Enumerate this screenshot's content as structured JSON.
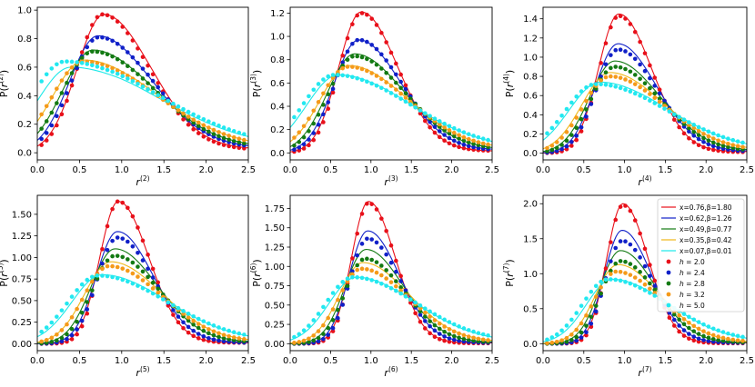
{
  "chart_data": {
    "type": "line+scatter",
    "layout": "2x3 grid of panels",
    "legend": {
      "placement": "inside bottom-right panel, top-right",
      "lines": [
        {
          "label": "x=0.76,β=1.80",
          "color": "#e8101a"
        },
        {
          "label": "x=0.62,β=1.26",
          "color": "#1020c8"
        },
        {
          "label": "x=0.49,β=0.77",
          "color": "#137a13"
        },
        {
          "label": "x=0.35,β=0.42",
          "color": "#f0b818"
        },
        {
          "label": "x=0.07,β=0.01",
          "color": "#1ce8e8"
        }
      ],
      "markers": [
        {
          "label": "h = 2.0",
          "color": "#e8101a"
        },
        {
          "label": "h = 2.4",
          "color": "#1020c8"
        },
        {
          "label": "h = 2.8",
          "color": "#137a13"
        },
        {
          "label": "h = 3.2",
          "color": "#f59a1a"
        },
        {
          "label": "h = 5.0",
          "color": "#22e8f0"
        }
      ]
    },
    "panels": [
      {
        "n": "2",
        "xlabel": "r",
        "ylabel": "P(r",
        "xlim": [
          0,
          2.5
        ],
        "ylim": [
          -0.05,
          1.02
        ],
        "xticks": [
          0.0,
          0.5,
          1.0,
          1.5,
          2.0,
          2.5
        ],
        "xtick_labels": [
          "0.0",
          "0.5",
          "1.0",
          "1.5",
          "2.0",
          "2.5"
        ],
        "yticks": [
          0.0,
          0.2,
          0.4,
          0.6,
          0.8,
          1.0
        ],
        "ytick_labels": [
          "0.0",
          "0.2",
          "0.4",
          "0.6",
          "0.8",
          "1.0"
        ],
        "curves": [
          {
            "peak": 0.79,
            "height": 0.97,
            "w_left": 0.32,
            "w_right": 0.55,
            "tail": 0.05
          },
          {
            "peak": 0.72,
            "height": 0.82,
            "w_left": 0.34,
            "w_right": 0.62,
            "tail": 0.07
          },
          {
            "peak": 0.66,
            "height": 0.72,
            "w_left": 0.36,
            "w_right": 0.7,
            "tail": 0.08
          },
          {
            "peak": 0.56,
            "height": 0.65,
            "w_left": 0.38,
            "w_right": 0.82,
            "tail": 0.09
          },
          {
            "peak": 0.4,
            "height": 0.6,
            "w_left": 0.4,
            "w_right": 1.0,
            "tail": 0.1
          }
        ],
        "points": [
          {
            "peak": 0.77,
            "height": 0.97,
            "w_left": 0.3,
            "w_right": 0.55,
            "tail": 0.04
          },
          {
            "peak": 0.73,
            "height": 0.81,
            "w_left": 0.33,
            "w_right": 0.63,
            "tail": 0.06
          },
          {
            "peak": 0.66,
            "height": 0.71,
            "w_left": 0.36,
            "w_right": 0.71,
            "tail": 0.07
          },
          {
            "peak": 0.55,
            "height": 0.64,
            "w_left": 0.38,
            "w_right": 0.84,
            "tail": 0.08
          },
          {
            "peak": 0.33,
            "height": 0.64,
            "w_left": 0.4,
            "w_right": 1.05,
            "tail": 0.1
          }
        ]
      },
      {
        "n": "3",
        "xlabel": "r",
        "ylabel": "P(r",
        "xlim": [
          0,
          2.5
        ],
        "ylim": [
          -0.06,
          1.25
        ],
        "xticks": [
          0.0,
          0.5,
          1.0,
          1.5,
          2.0,
          2.5
        ],
        "xtick_labels": [
          "0.0",
          "0.5",
          "1.0",
          "1.5",
          "2.0",
          "2.5"
        ],
        "yticks": [
          0.0,
          0.2,
          0.4,
          0.6,
          0.8,
          1.0,
          1.2
        ],
        "ytick_labels": [
          "0.0",
          "0.2",
          "0.4",
          "0.6",
          "0.8",
          "1.0",
          "1.2"
        ],
        "curves": [
          {
            "peak": 0.88,
            "height": 1.21,
            "w_left": 0.28,
            "w_right": 0.45,
            "tail": 0.03
          },
          {
            "peak": 0.85,
            "height": 0.97,
            "w_left": 0.31,
            "w_right": 0.52,
            "tail": 0.05
          },
          {
            "peak": 0.8,
            "height": 0.85,
            "w_left": 0.34,
            "w_right": 0.6,
            "tail": 0.06
          },
          {
            "peak": 0.73,
            "height": 0.75,
            "w_left": 0.36,
            "w_right": 0.7,
            "tail": 0.07
          },
          {
            "peak": 0.6,
            "height": 0.67,
            "w_left": 0.4,
            "w_right": 0.85,
            "tail": 0.09
          }
        ],
        "points": [
          {
            "peak": 0.88,
            "height": 1.2,
            "w_left": 0.27,
            "w_right": 0.45,
            "tail": 0.03
          },
          {
            "peak": 0.85,
            "height": 0.97,
            "w_left": 0.3,
            "w_right": 0.53,
            "tail": 0.04
          },
          {
            "peak": 0.8,
            "height": 0.83,
            "w_left": 0.33,
            "w_right": 0.62,
            "tail": 0.05
          },
          {
            "peak": 0.72,
            "height": 0.74,
            "w_left": 0.36,
            "w_right": 0.72,
            "tail": 0.06
          },
          {
            "peak": 0.55,
            "height": 0.67,
            "w_left": 0.4,
            "w_right": 0.9,
            "tail": 0.08
          }
        ]
      },
      {
        "n": "4",
        "xlabel": "r",
        "ylabel": "P(r",
        "xlim": [
          0,
          2.5
        ],
        "ylim": [
          -0.07,
          1.52
        ],
        "xticks": [
          0.0,
          0.5,
          1.0,
          1.5,
          2.0,
          2.5
        ],
        "xtick_labels": [
          "0.0",
          "0.5",
          "1.0",
          "1.5",
          "2.0",
          "2.5"
        ],
        "yticks": [
          0.0,
          0.2,
          0.4,
          0.6,
          0.8,
          1.0,
          1.2,
          1.4
        ],
        "ytick_labels": [
          "0.0",
          "0.2",
          "0.4",
          "0.6",
          "0.8",
          "1.0",
          "1.2",
          "1.4"
        ],
        "curves": [
          {
            "peak": 0.93,
            "height": 1.45,
            "w_left": 0.25,
            "w_right": 0.4,
            "tail": 0.03
          },
          {
            "peak": 0.92,
            "height": 1.14,
            "w_left": 0.28,
            "w_right": 0.47,
            "tail": 0.04
          },
          {
            "peak": 0.88,
            "height": 0.96,
            "w_left": 0.31,
            "w_right": 0.55,
            "tail": 0.05
          },
          {
            "peak": 0.82,
            "height": 0.84,
            "w_left": 0.34,
            "w_right": 0.65,
            "tail": 0.06
          },
          {
            "peak": 0.7,
            "height": 0.74,
            "w_left": 0.38,
            "w_right": 0.8,
            "tail": 0.08
          }
        ],
        "points": [
          {
            "peak": 0.93,
            "height": 1.43,
            "w_left": 0.24,
            "w_right": 0.4,
            "tail": 0.02
          },
          {
            "peak": 0.92,
            "height": 1.08,
            "w_left": 0.27,
            "w_right": 0.48,
            "tail": 0.03
          },
          {
            "peak": 0.88,
            "height": 0.9,
            "w_left": 0.3,
            "w_right": 0.56,
            "tail": 0.04
          },
          {
            "peak": 0.82,
            "height": 0.8,
            "w_left": 0.33,
            "w_right": 0.66,
            "tail": 0.05
          },
          {
            "peak": 0.65,
            "height": 0.72,
            "w_left": 0.38,
            "w_right": 0.85,
            "tail": 0.07
          }
        ]
      },
      {
        "n": "5",
        "xlabel": "r",
        "ylabel": "P(r",
        "xlim": [
          0,
          2.5
        ],
        "ylim": [
          -0.08,
          1.72
        ],
        "xticks": [
          0.0,
          0.5,
          1.0,
          1.5,
          2.0,
          2.5
        ],
        "xtick_labels": [
          "0.0",
          "0.5",
          "1.0",
          "1.5",
          "2.0",
          "2.5"
        ],
        "yticks": [
          0.0,
          0.25,
          0.5,
          0.75,
          1.0,
          1.25,
          1.5
        ],
        "ytick_labels": [
          "0.00",
          "0.25",
          "0.50",
          "0.75",
          "1.00",
          "1.25",
          "1.50"
        ],
        "curves": [
          {
            "peak": 0.96,
            "height": 1.65,
            "w_left": 0.22,
            "w_right": 0.36,
            "tail": 0.02
          },
          {
            "peak": 0.95,
            "height": 1.3,
            "w_left": 0.25,
            "w_right": 0.42,
            "tail": 0.03
          },
          {
            "peak": 0.92,
            "height": 1.1,
            "w_left": 0.28,
            "w_right": 0.5,
            "tail": 0.04
          },
          {
            "peak": 0.87,
            "height": 0.95,
            "w_left": 0.31,
            "w_right": 0.6,
            "tail": 0.05
          },
          {
            "peak": 0.77,
            "height": 0.8,
            "w_left": 0.36,
            "w_right": 0.75,
            "tail": 0.07
          }
        ],
        "points": [
          {
            "peak": 0.96,
            "height": 1.65,
            "w_left": 0.21,
            "w_right": 0.36,
            "tail": 0.02
          },
          {
            "peak": 0.95,
            "height": 1.23,
            "w_left": 0.24,
            "w_right": 0.43,
            "tail": 0.02
          },
          {
            "peak": 0.92,
            "height": 1.02,
            "w_left": 0.27,
            "w_right": 0.52,
            "tail": 0.03
          },
          {
            "peak": 0.85,
            "height": 0.9,
            "w_left": 0.3,
            "w_right": 0.62,
            "tail": 0.04
          },
          {
            "peak": 0.72,
            "height": 0.79,
            "w_left": 0.36,
            "w_right": 0.8,
            "tail": 0.06
          }
        ]
      },
      {
        "n": "6",
        "xlabel": "r",
        "ylabel": "P(r",
        "xlim": [
          0,
          2.5
        ],
        "ylim": [
          -0.09,
          1.92
        ],
        "xticks": [
          0.0,
          0.5,
          1.0,
          1.5,
          2.0,
          2.5
        ],
        "xtick_labels": [
          "0.0",
          "0.5",
          "1.0",
          "1.5",
          "2.0",
          "2.5"
        ],
        "yticks": [
          0.0,
          0.25,
          0.5,
          0.75,
          1.0,
          1.25,
          1.5,
          1.75
        ],
        "ytick_labels": [
          "0.00",
          "0.25",
          "0.50",
          "0.75",
          "1.00",
          "1.25",
          "1.50",
          "1.75"
        ],
        "curves": [
          {
            "peak": 0.97,
            "height": 1.84,
            "w_left": 0.21,
            "w_right": 0.33,
            "tail": 0.02
          },
          {
            "peak": 0.96,
            "height": 1.46,
            "w_left": 0.23,
            "w_right": 0.39,
            "tail": 0.03
          },
          {
            "peak": 0.94,
            "height": 1.22,
            "w_left": 0.26,
            "w_right": 0.46,
            "tail": 0.04
          },
          {
            "peak": 0.9,
            "height": 1.05,
            "w_left": 0.29,
            "w_right": 0.56,
            "tail": 0.05
          },
          {
            "peak": 0.82,
            "height": 0.86,
            "w_left": 0.34,
            "w_right": 0.72,
            "tail": 0.06
          }
        ],
        "points": [
          {
            "peak": 0.97,
            "height": 1.82,
            "w_left": 0.2,
            "w_right": 0.33,
            "tail": 0.01
          },
          {
            "peak": 0.96,
            "height": 1.36,
            "w_left": 0.22,
            "w_right": 0.4,
            "tail": 0.02
          },
          {
            "peak": 0.93,
            "height": 1.1,
            "w_left": 0.25,
            "w_right": 0.48,
            "tail": 0.03
          },
          {
            "peak": 0.88,
            "height": 0.97,
            "w_left": 0.28,
            "w_right": 0.58,
            "tail": 0.04
          },
          {
            "peak": 0.78,
            "height": 0.86,
            "w_left": 0.34,
            "w_right": 0.76,
            "tail": 0.06
          }
        ]
      },
      {
        "n": "7",
        "xlabel": "r",
        "ylabel": "P(r",
        "xlim": [
          0,
          2.5
        ],
        "ylim": [
          -0.1,
          2.12
        ],
        "xticks": [
          0.0,
          0.5,
          1.0,
          1.5,
          2.0,
          2.5
        ],
        "xtick_labels": [
          "0.0",
          "0.5",
          "1.0",
          "1.5",
          "2.0",
          "2.5"
        ],
        "yticks": [
          0.0,
          0.5,
          1.0,
          1.5,
          2.0
        ],
        "ytick_labels": [
          "0.0",
          "0.5",
          "1.0",
          "1.5",
          "2.0"
        ],
        "curves": [
          {
            "peak": 0.98,
            "height": 2.0,
            "w_left": 0.2,
            "w_right": 0.31,
            "tail": 0.02
          },
          {
            "peak": 0.97,
            "height": 1.62,
            "w_left": 0.22,
            "w_right": 0.36,
            "tail": 0.03
          },
          {
            "peak": 0.95,
            "height": 1.33,
            "w_left": 0.25,
            "w_right": 0.43,
            "tail": 0.03
          },
          {
            "peak": 0.92,
            "height": 1.13,
            "w_left": 0.28,
            "w_right": 0.52,
            "tail": 0.04
          },
          {
            "peak": 0.85,
            "height": 0.92,
            "w_left": 0.32,
            "w_right": 0.68,
            "tail": 0.06
          }
        ],
        "points": [
          {
            "peak": 0.98,
            "height": 1.98,
            "w_left": 0.19,
            "w_right": 0.31,
            "tail": 0.01
          },
          {
            "peak": 0.97,
            "height": 1.47,
            "w_left": 0.21,
            "w_right": 0.37,
            "tail": 0.02
          },
          {
            "peak": 0.95,
            "height": 1.18,
            "w_left": 0.24,
            "w_right": 0.45,
            "tail": 0.03
          },
          {
            "peak": 0.9,
            "height": 1.03,
            "w_left": 0.27,
            "w_right": 0.55,
            "tail": 0.04
          },
          {
            "peak": 0.8,
            "height": 0.92,
            "w_left": 0.32,
            "w_right": 0.72,
            "tail": 0.06
          }
        ]
      }
    ]
  }
}
